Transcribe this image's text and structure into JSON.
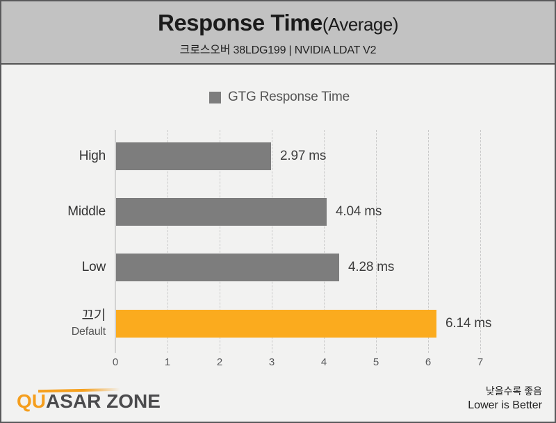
{
  "header": {
    "title": "Response Time",
    "title_suffix": "(Average)",
    "subtitle": "크로스오버 38LDG199  |  NVIDIA LDAT V2"
  },
  "legend": {
    "label": "GTG Response Time",
    "swatch_color": "#7d7d7d"
  },
  "chart_data": {
    "type": "bar",
    "orientation": "horizontal",
    "title": "Response Time (Average)",
    "series_name": "GTG Response Time",
    "unit": "ms",
    "categories": [
      "High",
      "Middle",
      "Low",
      "끄기"
    ],
    "category_sublabels": [
      "",
      "",
      "",
      "Default"
    ],
    "values": [
      2.97,
      4.04,
      4.28,
      6.14
    ],
    "value_labels": [
      "2.97 ms",
      "4.04 ms",
      "4.28 ms",
      "6.14 ms"
    ],
    "bar_colors": [
      "#7d7d7d",
      "#7d7d7d",
      "#7d7d7d",
      "#fbab1e"
    ],
    "xlim": [
      0,
      7
    ],
    "ticks": [
      0,
      1,
      2,
      3,
      4,
      5,
      6,
      7
    ],
    "grid": "vertical-dashed",
    "legend_position": "top-center",
    "note": "Lower is Better"
  },
  "footer": {
    "logo_qu": "QU",
    "logo_rest": "ASAR ZONE",
    "note_ko": "낮을수록 좋음",
    "note_en": "Lower is Better"
  },
  "colors": {
    "header_bg": "#c2c2c2",
    "body_bg": "#f2f2f1",
    "border": "#59595b",
    "bar_gray": "#7d7d7d",
    "bar_orange": "#fbab1e",
    "gridline": "#c9c9c9",
    "axis": "#d2d2d2"
  }
}
